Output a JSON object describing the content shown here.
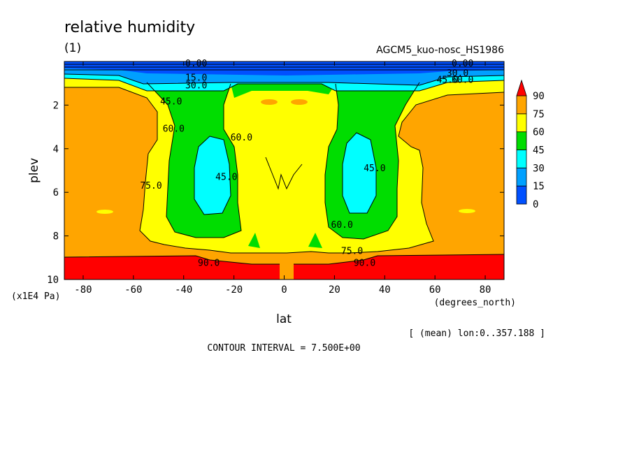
{
  "chart_data": {
    "type": "heatmap",
    "title": "relative humidity",
    "subtitle": "(1)",
    "dataset": "AGCM5_kuo-nosc_HS1986",
    "xlabel": "lat",
    "x_units": "(degrees_north)",
    "ylabel": "plev",
    "y_units": "(x1E4 Pa)",
    "mean_note": "[ (mean) lon:0..357.188 ]",
    "contour_interval": "CONTOUR INTERVAL = 7.500E+00",
    "xlim": [
      -87.5,
      87.5
    ],
    "ylim": [
      10,
      0
    ],
    "x_ticks": [
      {
        "value": -80,
        "label": "-80"
      },
      {
        "value": -60,
        "label": "-60"
      },
      {
        "value": -40,
        "label": "-40"
      },
      {
        "value": -20,
        "label": "-20"
      },
      {
        "value": 0,
        "label": "0"
      },
      {
        "value": 20,
        "label": "20"
      },
      {
        "value": 40,
        "label": "40"
      },
      {
        "value": 60,
        "label": "60"
      },
      {
        "value": 80,
        "label": "80"
      }
    ],
    "y_ticks": [
      {
        "value": 2,
        "label": "2"
      },
      {
        "value": 4,
        "label": "4"
      },
      {
        "value": 6,
        "label": "6"
      },
      {
        "value": 8,
        "label": "8"
      },
      {
        "value": 10,
        "label": "10"
      }
    ],
    "levels": [
      {
        "value": 0,
        "label": "0",
        "color": "#0050ff"
      },
      {
        "value": 15,
        "label": "15",
        "color": "#00a0ff"
      },
      {
        "value": 30,
        "label": "30",
        "color": "#00ffff"
      },
      {
        "value": 45,
        "label": "45",
        "color": "#00dd00"
      },
      {
        "value": 60,
        "label": "60",
        "color": "#ffff00"
      },
      {
        "value": 75,
        "label": "75",
        "color": "#ffa500"
      },
      {
        "value": 90,
        "label": "90",
        "color": "#ff0000"
      }
    ],
    "contour_labels": [
      {
        "text": "0.00",
        "lat": -35,
        "p": 0.1
      },
      {
        "text": "15.0",
        "lat": -35,
        "p": 0.75
      },
      {
        "text": "30.0",
        "lat": -35,
        "p": 1.1
      },
      {
        "text": "45.0",
        "lat": -45,
        "p": 1.85
      },
      {
        "text": "60.0",
        "lat": -44,
        "p": 3.1
      },
      {
        "text": "60.0",
        "lat": -17,
        "p": 3.5
      },
      {
        "text": "45.0",
        "lat": -23,
        "p": 5.3
      },
      {
        "text": "75.0",
        "lat": -53,
        "p": 5.7
      },
      {
        "text": "45.0",
        "lat": 36,
        "p": 4.9
      },
      {
        "text": "60.0",
        "lat": 23,
        "p": 7.5
      },
      {
        "text": "75.0",
        "lat": 27,
        "p": 8.7
      },
      {
        "text": "90.0",
        "lat": 32,
        "p": 9.25
      },
      {
        "text": "90.0",
        "lat": -30,
        "p": 9.25
      },
      {
        "text": "0.00",
        "lat": 71,
        "p": 0.1
      },
      {
        "text": "30.0",
        "lat": 69,
        "p": 0.55
      },
      {
        "text": "45.0",
        "lat": 65,
        "p": 0.85
      },
      {
        "text": "60.0",
        "lat": 71,
        "p": 0.85
      }
    ]
  }
}
